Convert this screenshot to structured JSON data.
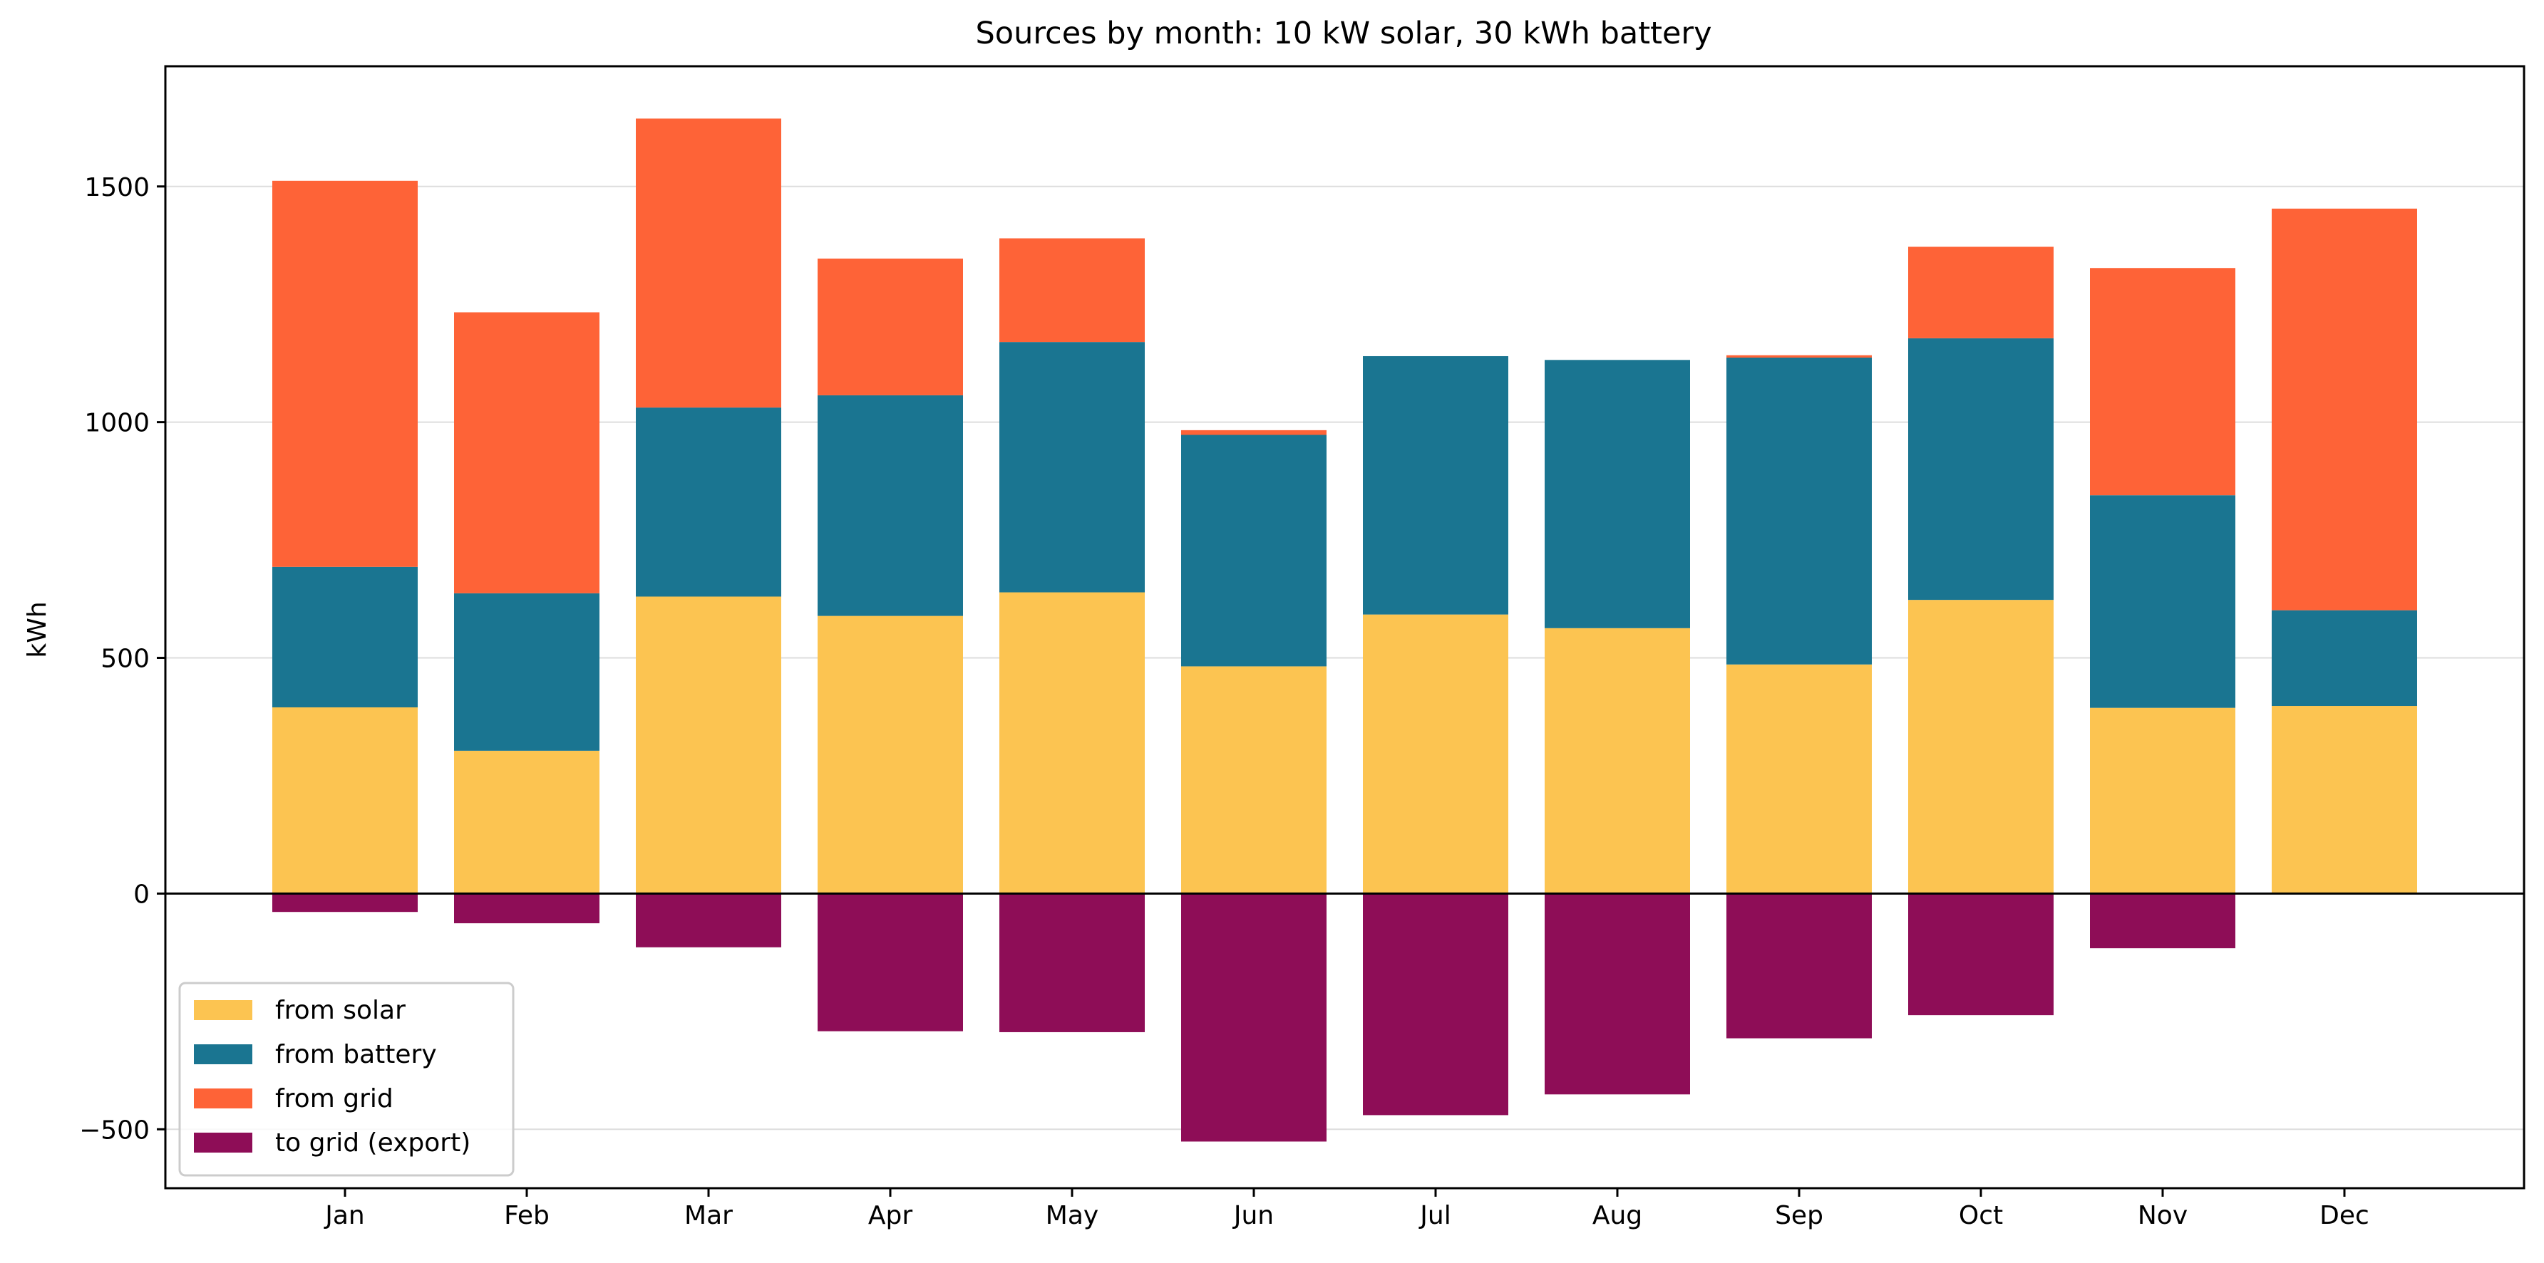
{
  "chart_data": {
    "type": "bar",
    "stacked": true,
    "title": "Sources by month:  10 kW solar, 30 kWh battery",
    "xlabel": "",
    "ylabel": "kWh",
    "categories": [
      "Jan",
      "Feb",
      "Mar",
      "Apr",
      "May",
      "Jun",
      "Jul",
      "Aug",
      "Sep",
      "Oct",
      "Nov",
      "Dec"
    ],
    "ylim": [
      -625,
      1755
    ],
    "yticks": [
      -500,
      0,
      500,
      1000,
      1500
    ],
    "ytick_labels": [
      "−500",
      "0",
      "500",
      "1000",
      "1500"
    ],
    "grid": "horizontal",
    "zero_line": true,
    "legend_position": "lower-left",
    "series": [
      {
        "name": "from solar",
        "color": "#FCC451",
        "values": [
          395,
          303,
          630,
          589,
          639,
          482,
          592,
          563,
          486,
          623,
          394,
          398
        ]
      },
      {
        "name": "from battery",
        "color": "#1A7591",
        "values": [
          298,
          334,
          401,
          468,
          531,
          491,
          548,
          569,
          651,
          555,
          451,
          203
        ]
      },
      {
        "name": "from grid",
        "color": "#FE6337",
        "values": [
          819,
          596,
          613,
          290,
          220,
          10,
          0,
          0,
          5,
          194,
          482,
          852
        ]
      },
      {
        "name": "to grid (export)",
        "color": "#8E0D57",
        "values": [
          -39,
          -63,
          -114,
          -292,
          -294,
          -526,
          -470,
          -426,
          -307,
          -258,
          -116,
          0
        ]
      }
    ]
  }
}
